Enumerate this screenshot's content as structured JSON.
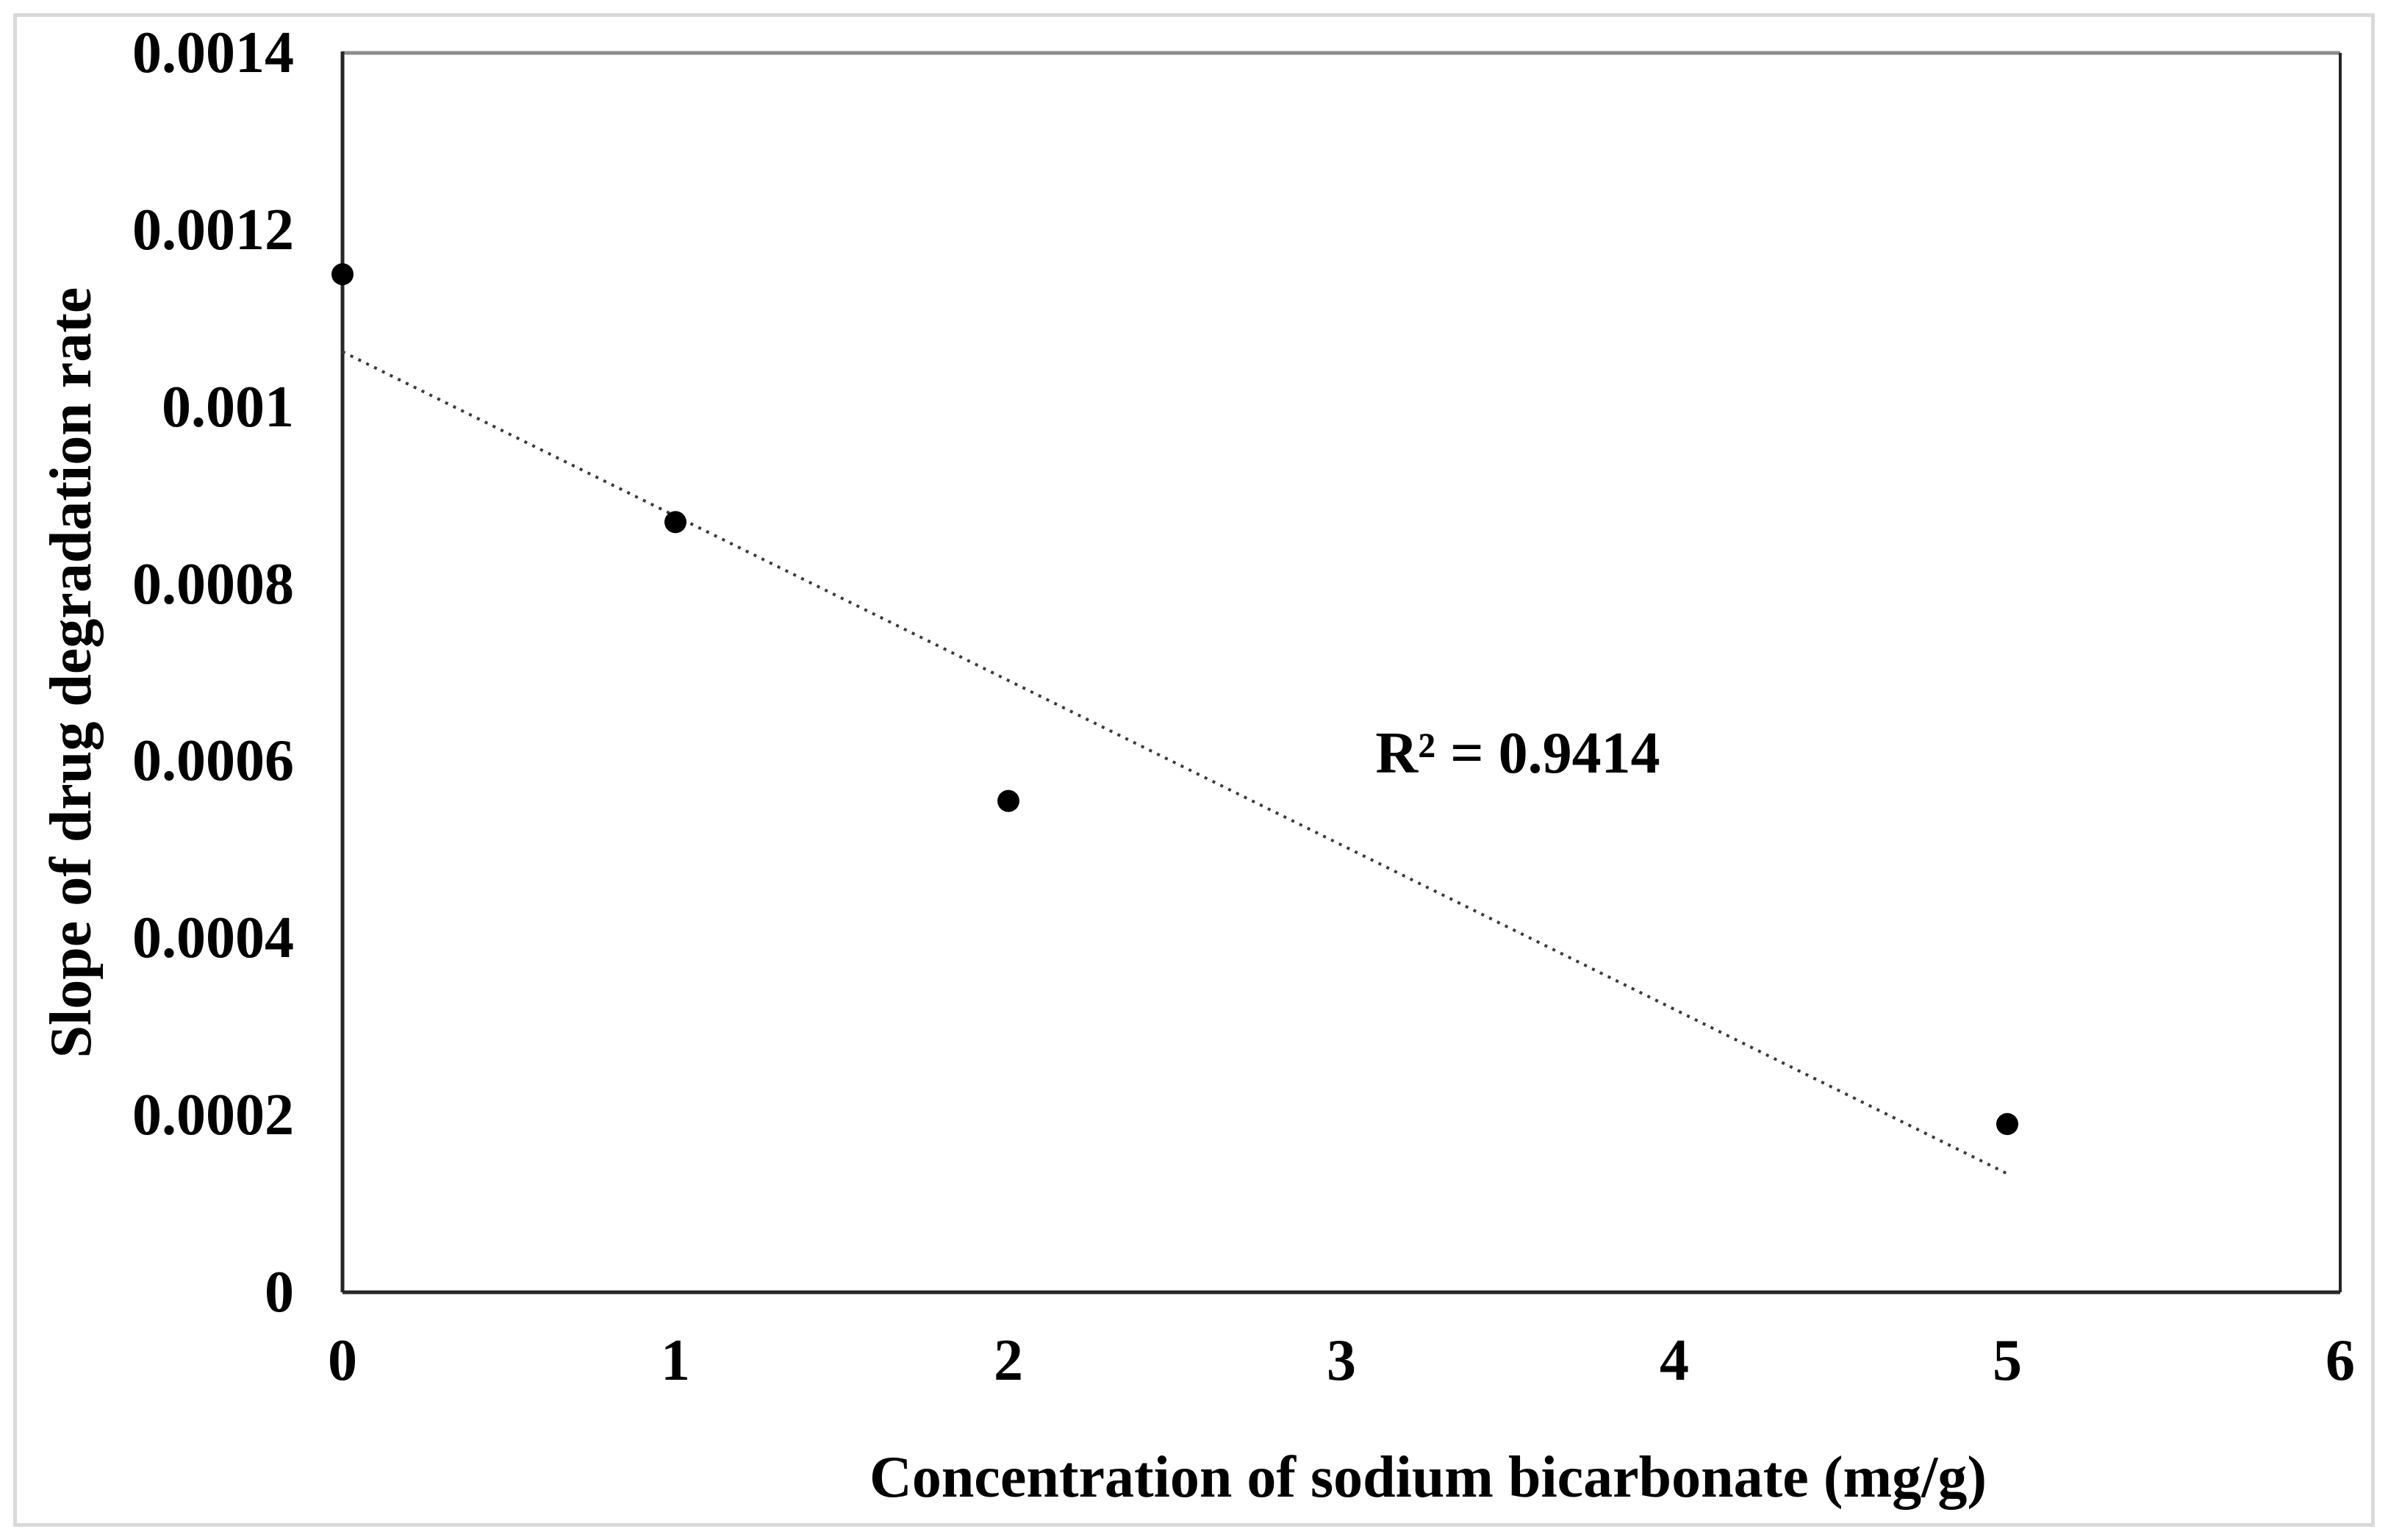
{
  "chart_data": {
    "type": "scatter",
    "title": "",
    "xlabel": "Concentration of sodium bicarbonate (mg/g)",
    "ylabel": "Slope of drug degradation rate",
    "xlim": [
      0,
      6
    ],
    "ylim": [
      0,
      0.0014
    ],
    "grid": false,
    "legend_position": "none",
    "x_ticks": [
      0,
      1,
      2,
      3,
      4,
      5,
      6
    ],
    "y_ticks": [
      {
        "value": 0,
        "label": "0"
      },
      {
        "value": 0.0002,
        "label": "0.0002"
      },
      {
        "value": 0.0004,
        "label": "0.0004"
      },
      {
        "value": 0.0006,
        "label": "0.0006"
      },
      {
        "value": 0.0008,
        "label": "0.0008"
      },
      {
        "value": 0.001,
        "label": "0.001"
      },
      {
        "value": 0.0012,
        "label": "0.0012"
      },
      {
        "value": 0.0014,
        "label": "0.0014"
      }
    ],
    "points": [
      {
        "x": 0,
        "y": 0.00115
      },
      {
        "x": 1,
        "y": 0.00087
      },
      {
        "x": 2,
        "y": 0.000555
      },
      {
        "x": 5,
        "y": 0.00019
      }
    ],
    "trendline": {
      "style": "dotted",
      "x_start": 0,
      "x_end": 5,
      "slope": -0.00018571,
      "intercept": 0.0010625
    },
    "annotation": {
      "text": "R² = 0.9414",
      "r_squared": 0.9414
    },
    "marker": {
      "shape": "circle",
      "color": "#000000",
      "radius_px": 15
    }
  },
  "colors": {
    "background": "#ffffff",
    "outer_border": "#d9d9d9",
    "axis": "#262626",
    "frame_top": "#8c8c8c",
    "trendline": "#3a3a3a",
    "text": "#000000"
  }
}
